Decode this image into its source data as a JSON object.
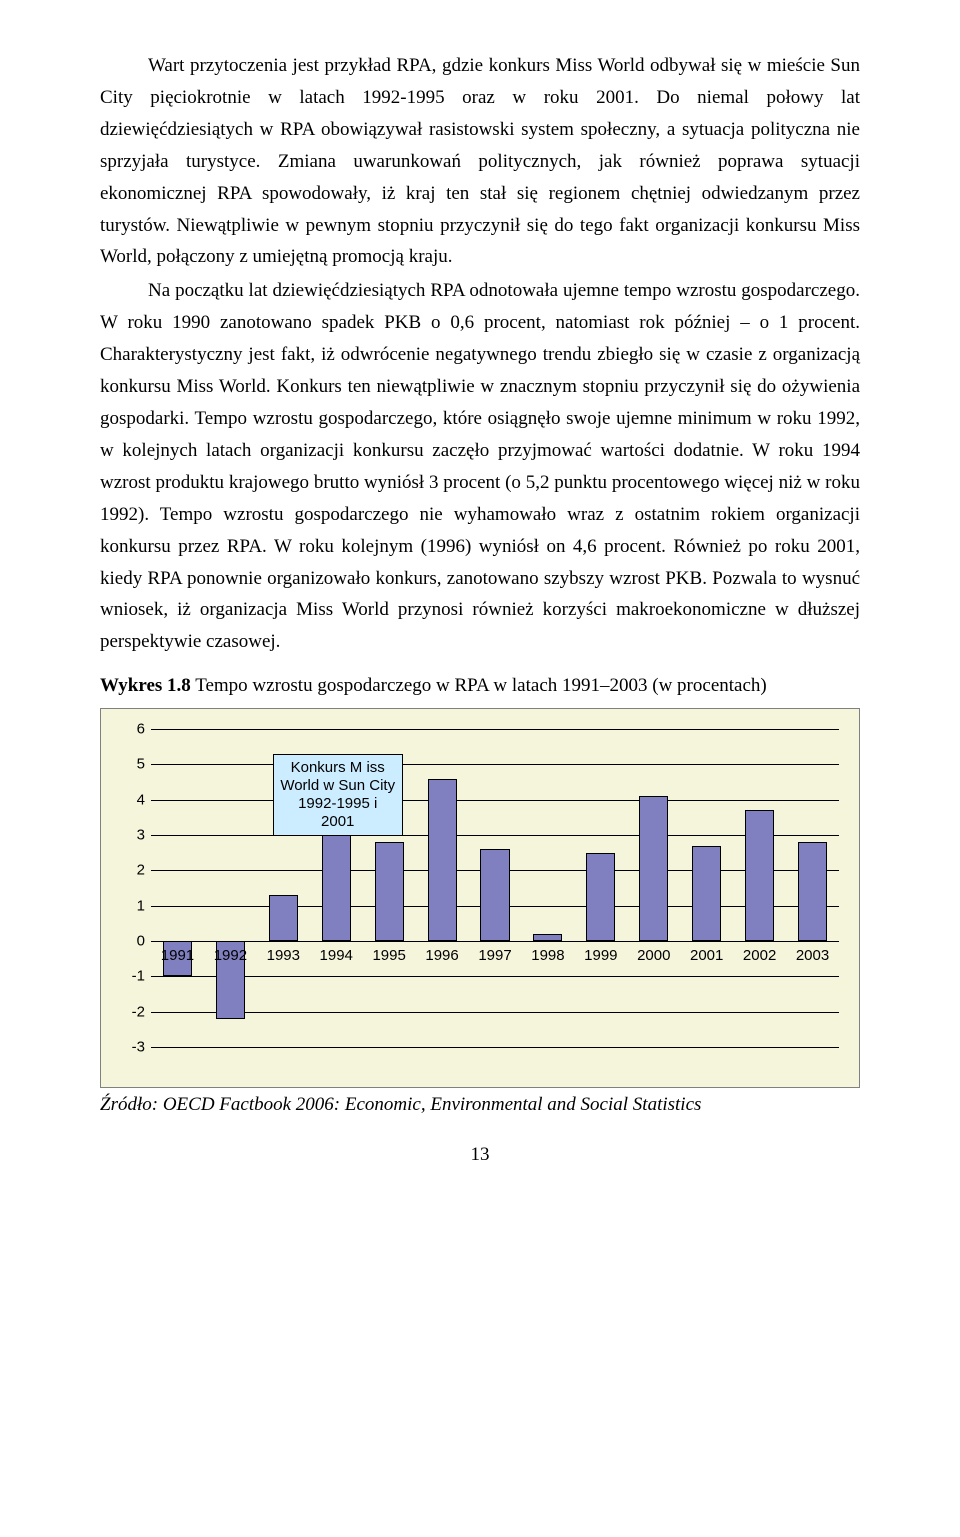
{
  "paragraphs": {
    "p1": "Wart przytoczenia jest przykład RPA, gdzie konkurs Miss World odbywał się w mieście Sun City pięciokrotnie w latach 1992-1995 oraz w roku 2001. Do niemal połowy lat dziewięćdziesiątych w RPA obowiązywał rasistowski system społeczny, a sytuacja polityczna nie sprzyjała turystyce. Zmiana uwarunkowań politycznych, jak również poprawa sytuacji ekonomicznej RPA spowodowały, iż kraj ten stał się regionem chętniej odwiedzanym przez turystów. Niewątpliwie w pewnym stopniu przyczynił się do tego fakt organizacji konkursu Miss World, połączony z umiejętną promocją kraju.",
    "p2": "Na początku lat dziewięćdziesiątych RPA odnotowała ujemne tempo wzrostu gospodarczego. W roku 1990 zanotowano spadek PKB o 0,6 procent, natomiast rok później – o 1 procent. Charakterystyczny jest fakt, iż odwrócenie negatywnego trendu zbiegło się w czasie z organizacją konkursu Miss World. Konkurs ten niewątpliwie w znacznym stopniu przyczynił się do ożywienia gospodarki. Tempo wzrostu gospodarczego, które osiągnęło swoje ujemne minimum w roku 1992, w kolejnych latach organizacji konkursu zaczęło przyjmować wartości dodatnie. W roku 1994 wzrost produktu krajowego brutto wyniósł 3 procent (o 5,2 punktu procentowego więcej niż w roku 1992). Tempo wzrostu gospodarczego nie wyhamowało wraz z ostatnim rokiem organizacji konkursu przez RPA. W roku kolejnym (1996) wyniósł on 4,6 procent. Również po roku 2001, kiedy RPA ponownie organizowało konkurs, zanotowano szybszy wzrost PKB. Pozwala to wysnuć wniosek, iż organizacja Miss World przynosi również korzyści makroekonomiczne w dłuższej perspektywie czasowej."
  },
  "caption": {
    "label": "Wykres 1.8",
    "text": " Tempo wzrostu gospodarczego w RPA w latach 1991–2003 (w procentach)"
  },
  "source": "Źródło: OECD Factbook 2006: Economic, Environmental and Social Statistics",
  "page_number": "13",
  "chart": {
    "type": "bar",
    "categories": [
      "1991",
      "1992",
      "1993",
      "1994",
      "1995",
      "1996",
      "1997",
      "1998",
      "1999",
      "2000",
      "2001",
      "2002",
      "2003"
    ],
    "values": [
      -1.0,
      -2.2,
      1.3,
      3.0,
      2.8,
      4.6,
      2.6,
      0.2,
      2.5,
      4.1,
      2.7,
      3.7,
      2.8
    ],
    "ylim": [
      -3,
      6
    ],
    "ytick_step": 1,
    "yticks": [
      -3,
      -2,
      -1,
      0,
      1,
      2,
      3,
      4,
      5,
      6
    ],
    "bar_fill": "#8080c0",
    "bar_border": "#000000",
    "background_color": "#f5f5dc",
    "grid_color": "#000000",
    "tick_font_family": "Arial",
    "tick_fontsize": 15,
    "annotation": {
      "line1": "Konkurs M iss",
      "line2": "World  w Sun City",
      "line3": "1992-1995 i 2001",
      "bg": "#ccecff",
      "border": "#000000"
    },
    "bar_width_ratio": 0.55
  }
}
